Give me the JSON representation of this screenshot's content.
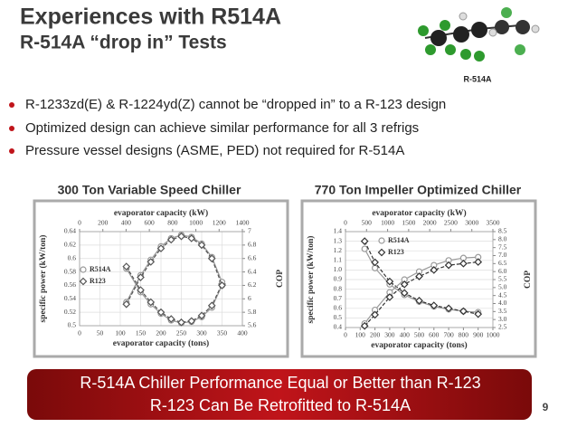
{
  "header": {
    "title": "Experiences with R514A",
    "subtitle": "R-514A “drop in” Tests"
  },
  "molecule_label": "R-514A",
  "bullets": [
    "R-1233zd(E) & R-1224yd(Z) cannot be “dropped in” to a R-123 design",
    "Optimized design can achieve similar performance for all 3 refrigs",
    "Pressure vessel designs (ASME, PED) not required for R-514A"
  ],
  "chart_data": [
    {
      "type": "line",
      "title": "300 Ton Variable Speed Chiller",
      "x_label": "evaporator capacity (tons)",
      "x2_label": "evaporator capacity (kW)",
      "y_label": "specific power (kW/ton)",
      "y2_label": "COP",
      "xlim": [
        0,
        400
      ],
      "xticks": [
        0,
        50,
        100,
        150,
        200,
        250,
        300,
        350,
        400
      ],
      "x2lim": [
        0,
        1400
      ],
      "x2ticks": [
        0,
        200,
        400,
        600,
        800,
        1000,
        1200,
        1400
      ],
      "ylim": [
        0.5,
        0.64
      ],
      "yticks": [
        0.5,
        0.52,
        0.54,
        0.56,
        0.58,
        0.6,
        0.62,
        0.64
      ],
      "y2lim": [
        5.6,
        7
      ],
      "y2ticks": [
        5.6,
        5.8,
        6,
        6.2,
        6.4,
        6.6,
        6.8,
        7
      ],
      "grid": true,
      "xgrid": true,
      "series": [
        {
          "name": "R514A",
          "color": "#999999",
          "marker": "circle",
          "x": [
            115,
            150,
            175,
            200,
            225,
            250,
            275,
            300,
            325,
            350
          ],
          "values": [
            0.585,
            0.55,
            0.532,
            0.518,
            0.508,
            0.504,
            0.506,
            0.513,
            0.527,
            0.56
          ]
        },
        {
          "name": "R123",
          "color": "#555555",
          "marker": "diamond",
          "x": [
            115,
            150,
            175,
            200,
            225,
            250,
            275,
            300,
            325,
            350
          ],
          "values": [
            0.588,
            0.553,
            0.535,
            0.52,
            0.51,
            0.505,
            0.507,
            0.515,
            0.53,
            0.562
          ]
        },
        {
          "color": "#999999",
          "marker": "circle",
          "axis": "y2",
          "x": [
            115,
            150,
            175,
            200,
            225,
            250,
            275,
            300,
            325,
            350
          ],
          "values": [
            5.95,
            6.35,
            6.58,
            6.78,
            6.9,
            6.95,
            6.92,
            6.82,
            6.62,
            6.25
          ]
        },
        {
          "color": "#555555",
          "marker": "diamond",
          "axis": "y2",
          "x": [
            115,
            150,
            175,
            200,
            225,
            250,
            275,
            300,
            325,
            350
          ],
          "values": [
            5.92,
            6.32,
            6.55,
            6.75,
            6.88,
            6.93,
            6.9,
            6.8,
            6.6,
            6.2
          ]
        }
      ]
    },
    {
      "type": "line",
      "title": "770 Ton Impeller Optimized Chiller",
      "x_label": "evaporator capacity (tons)",
      "x2_label": "evaporator capacity (kW)",
      "y_label": "specific power (kW/ton)",
      "y2_label": "COP",
      "xlim": [
        0,
        1000
      ],
      "xticks": [
        0,
        100,
        200,
        300,
        400,
        500,
        600,
        700,
        800,
        900,
        1000
      ],
      "x2lim": [
        0,
        3500
      ],
      "x2ticks": [
        0,
        500,
        1000,
        1500,
        2000,
        2500,
        3000,
        3500
      ],
      "ylim": [
        0.4,
        1.4
      ],
      "yticks": [
        0.4,
        0.5,
        0.6,
        0.7,
        0.8,
        0.9,
        {
          "value": 1,
          "label": "1.0"
        },
        1.1,
        1.2,
        1.3,
        1.4
      ],
      "y2lim": [
        2.5,
        8.5
      ],
      "y2ticks": [
        2.5,
        {
          "value": 3,
          "label": "3.0"
        },
        3.5,
        {
          "value": 4,
          "label": "4.0"
        },
        4.5,
        {
          "value": 5,
          "label": "5.0"
        },
        5.5,
        {
          "value": 6,
          "label": "6.0"
        },
        6.5,
        {
          "value": 7,
          "label": "7.0"
        },
        7.5,
        {
          "value": 8,
          "label": "8.0"
        },
        8.5
      ],
      "grid": true,
      "xgrid": false,
      "series": [
        {
          "name": "R514A",
          "color": "#999999",
          "marker": "circle",
          "x": [
            130,
            200,
            300,
            400,
            500,
            600,
            700,
            800,
            900
          ],
          "values": [
            1.22,
            1.02,
            0.85,
            0.74,
            0.67,
            0.62,
            0.59,
            0.57,
            0.56
          ]
        },
        {
          "name": "R123",
          "color": "#333333",
          "marker": "diamond",
          "x": [
            130,
            200,
            300,
            400,
            500,
            600,
            700,
            800,
            900
          ],
          "values": [
            1.3,
            1.08,
            0.88,
            0.76,
            0.68,
            0.63,
            0.6,
            0.57,
            0.54
          ]
        },
        {
          "color": "#999999",
          "marker": "circle",
          "axis": "y2",
          "x": [
            130,
            200,
            300,
            400,
            500,
            600,
            700,
            800,
            900
          ],
          "values": [
            2.75,
            3.6,
            4.7,
            5.5,
            6,
            6.4,
            6.7,
            6.85,
            6.9
          ]
        },
        {
          "color": "#333333",
          "marker": "diamond",
          "axis": "y2",
          "x": [
            130,
            200,
            300,
            400,
            500,
            600,
            700,
            800,
            900
          ],
          "values": [
            2.6,
            3.3,
            4.4,
            5.2,
            5.7,
            6.1,
            6.4,
            6.5,
            6.6
          ]
        }
      ]
    }
  ],
  "banner": [
    "R-514A Chiller Performance Equal or Better than R-123",
    "R-123 Can Be Retrofitted to R-514A"
  ],
  "page_number": "9"
}
